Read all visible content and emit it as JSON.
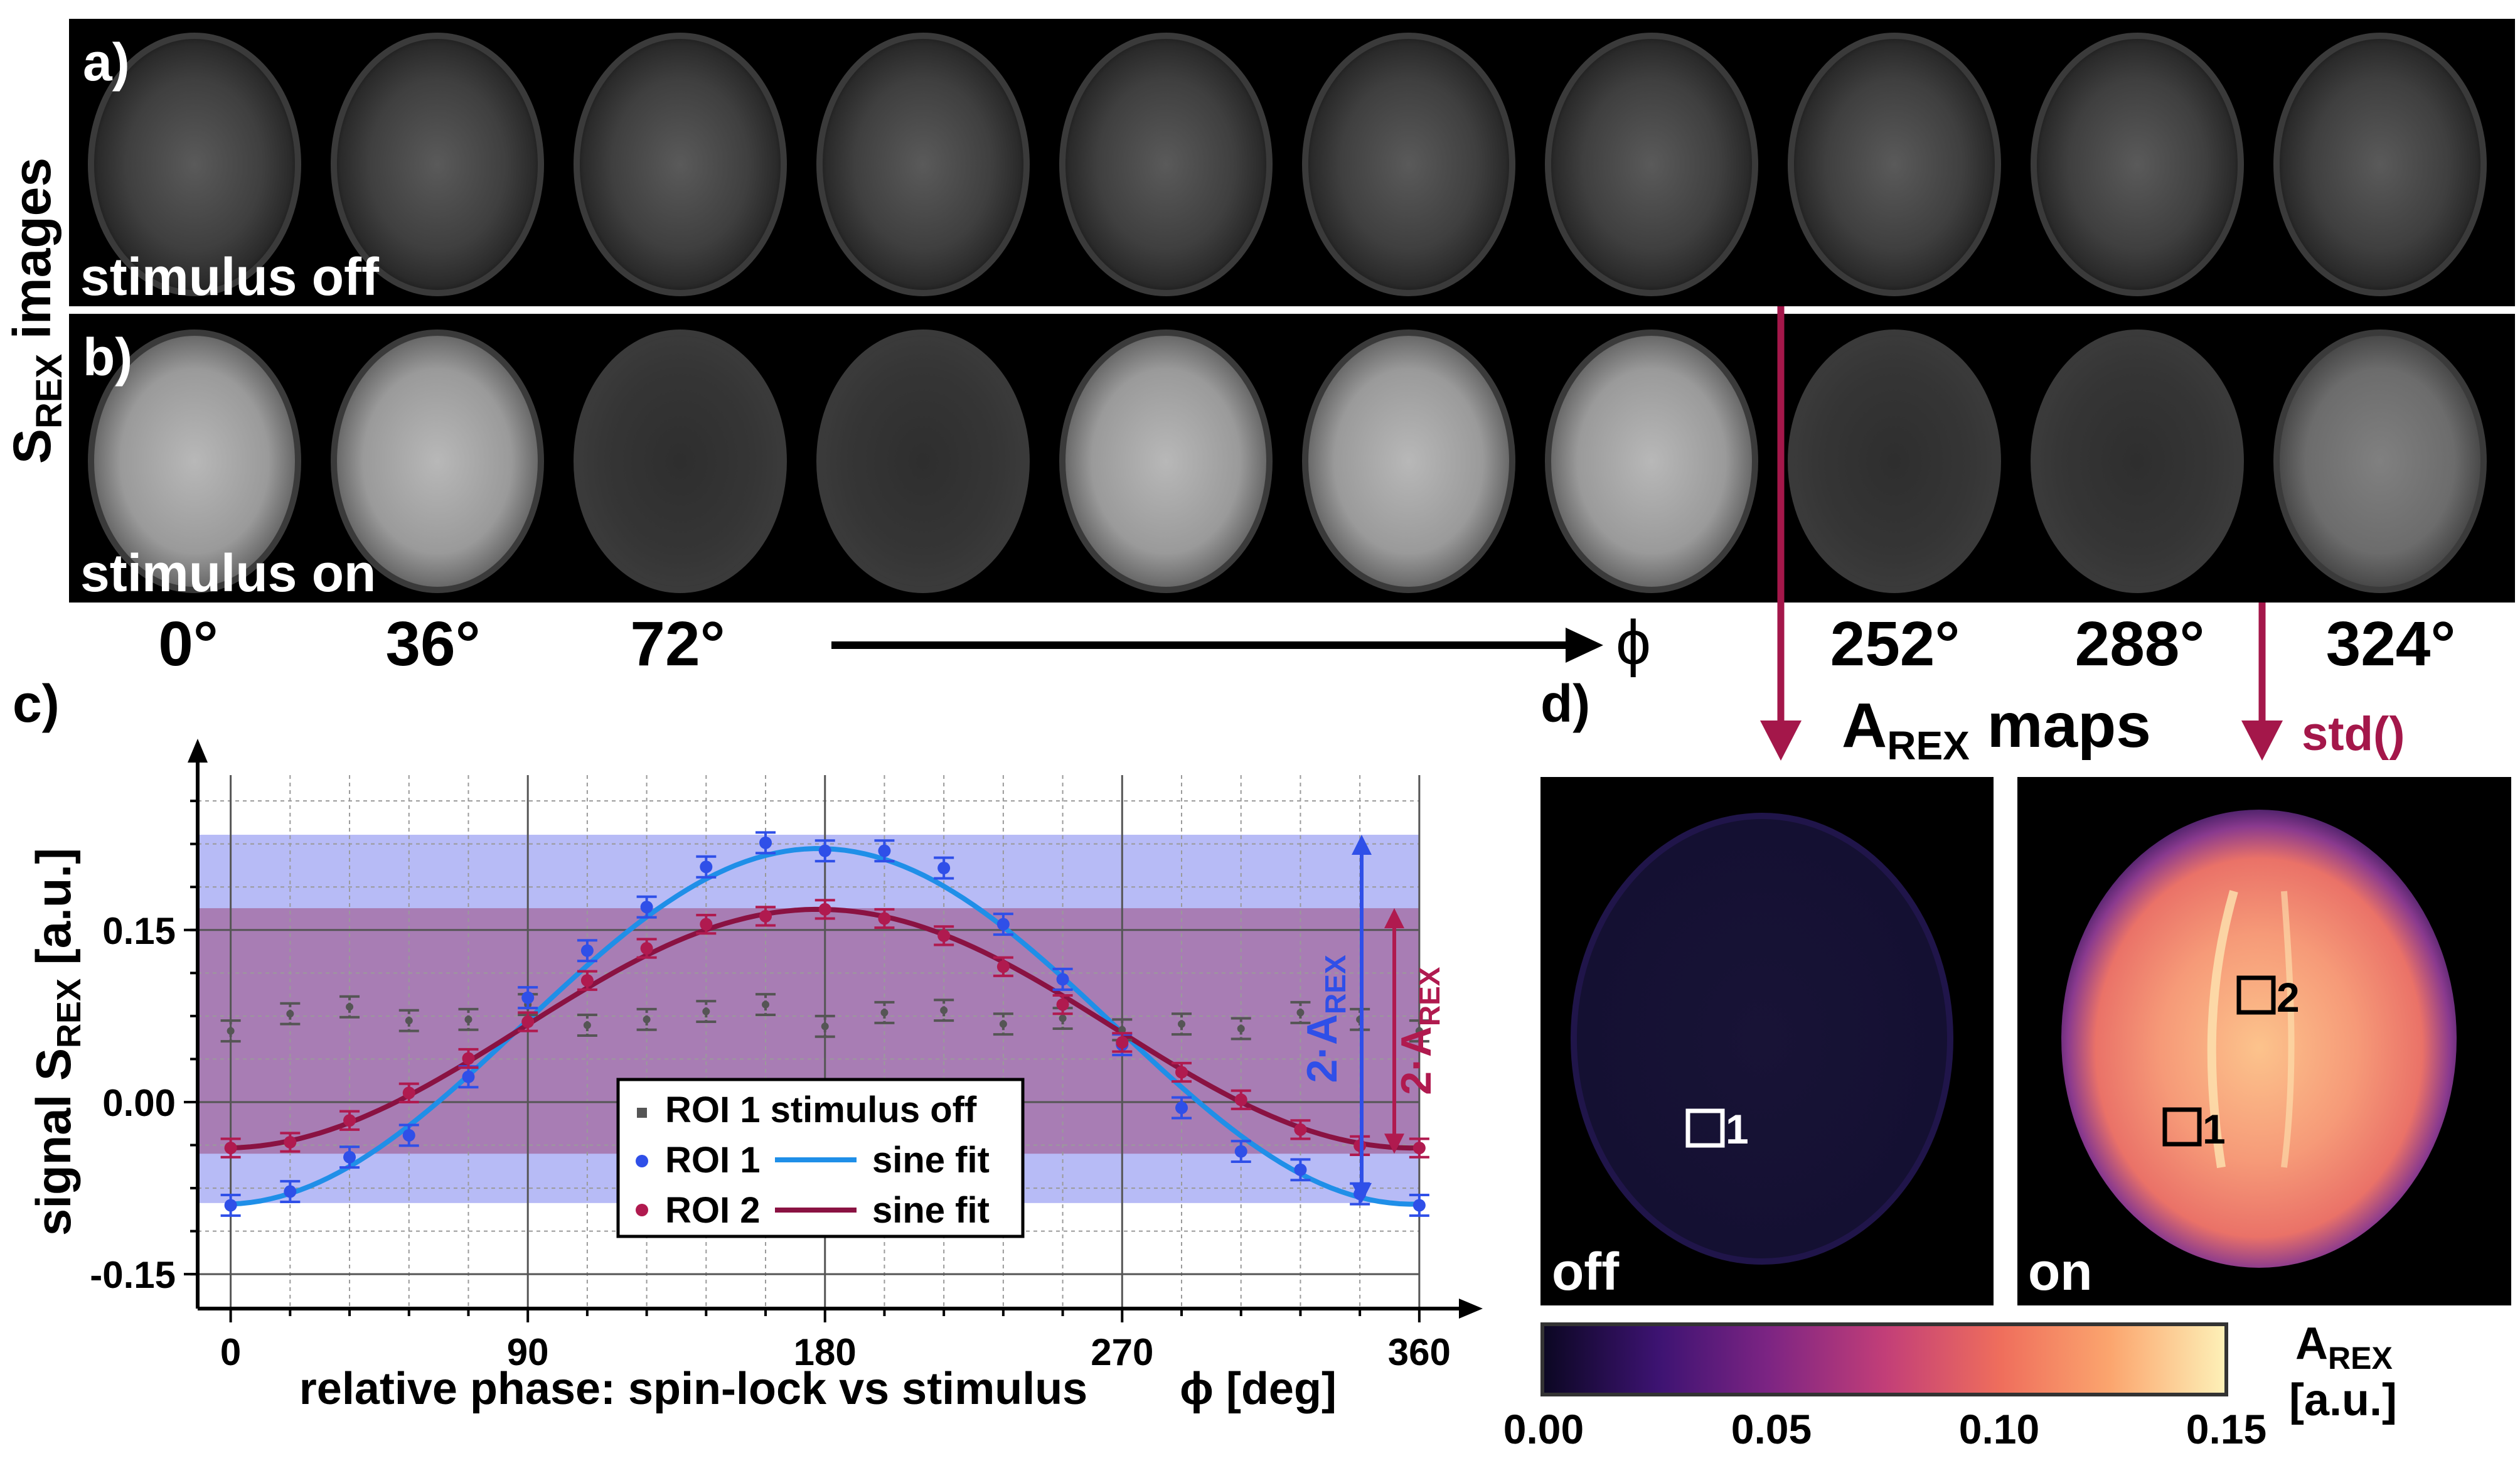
{
  "panel_labels": {
    "a": "a)",
    "b": "b)",
    "c": "c)",
    "d": "d)"
  },
  "row_title": {
    "main": "S",
    "sub": "REX",
    "rest": " images"
  },
  "strip_off_label": "stimulus off",
  "strip_on_label": "stimulus on",
  "phase_labels": [
    "0°",
    "36°",
    "72°",
    "252°",
    "288°",
    "324°"
  ],
  "phi_symbol": "ϕ",
  "maps_title": {
    "main": "A",
    "sub": "REX",
    "rest": " maps"
  },
  "std_label": "std()",
  "map_off_label": "off",
  "map_on_label": "on",
  "roi_box_labels": [
    "1",
    "1",
    "2"
  ],
  "colorbar": {
    "ticks": [
      "0.00",
      "0.05",
      "0.10",
      "0.15"
    ],
    "label_main": "A",
    "label_sub": "REX",
    "label_unit": "[a.u.]",
    "colors": [
      "#0b0722",
      "#3d1372",
      "#7c2483",
      "#c23e78",
      "#ef6e5c",
      "#fba56e",
      "#fdf1b8"
    ]
  },
  "amp_labels": {
    "blue": {
      "prefix": "2·A",
      "sub": "REX"
    },
    "red": {
      "prefix": "2·A",
      "sub": "REX"
    }
  },
  "colors": {
    "roi1": "#2f4fe8",
    "roi1_fit": "#1f8fe8",
    "roi2": "#b01a4f",
    "roi2_fit": "#8a1242",
    "off": "#555555",
    "arrow": "#a4174a"
  },
  "legend": {
    "row1": "ROI 1 stimulus off",
    "row2_a": "ROI 1",
    "row2_b": "sine fit",
    "row3_a": "ROI 2",
    "row3_b": "sine fit"
  },
  "chart_data": {
    "type": "scatter",
    "xlabel": "relative phase: spin-lock vs stimulus",
    "xlabel_unit": "ϕ [deg]",
    "ylabel_main": "signal S",
    "ylabel_sub": "REX",
    "ylabel_unit": " [a.u.]",
    "x_ticks": [
      0,
      90,
      180,
      270,
      360
    ],
    "y_ticks": [
      -0.15,
      0.0,
      0.15
    ],
    "y_tick_labels": [
      "-0.15",
      "0.00",
      "0.15"
    ],
    "xlim": [
      -10,
      372
    ],
    "ylim": [
      -0.18,
      0.285
    ],
    "grid": true,
    "x": [
      0,
      18,
      36,
      54,
      72,
      90,
      108,
      126,
      144,
      162,
      180,
      198,
      216,
      234,
      252,
      270,
      288,
      306,
      324,
      342,
      360
    ],
    "series": [
      {
        "name": "ROI 1 stimulus off",
        "y": [
          0.062,
          0.077,
          0.083,
          0.071,
          0.072,
          0.085,
          0.067,
          0.072,
          0.079,
          0.085,
          0.066,
          0.078,
          0.08,
          0.068,
          0.073,
          0.063,
          0.068,
          0.064,
          0.078,
          0.072,
          0.062
        ]
      },
      {
        "name": "ROI 1",
        "y": [
          -0.09,
          -0.078,
          -0.048,
          -0.029,
          0.022,
          0.091,
          0.132,
          0.17,
          0.205,
          0.226,
          0.219,
          0.219,
          0.204,
          0.155,
          0.107,
          0.05,
          -0.005,
          -0.043,
          -0.059,
          -0.08,
          -0.09
        ]
      },
      {
        "name": "ROI 2",
        "y": [
          -0.04,
          -0.035,
          -0.016,
          0.008,
          0.038,
          0.07,
          0.106,
          0.134,
          0.155,
          0.162,
          0.168,
          0.16,
          0.145,
          0.118,
          0.085,
          0.052,
          0.026,
          0.002,
          -0.024,
          -0.038,
          -0.04
        ]
      }
    ],
    "fits": [
      {
        "name": "ROI 1 sine fit",
        "offset": 0.066,
        "amplitude": 0.155,
        "peak_phase": 178
      },
      {
        "name": "ROI 2 sine fit",
        "offset": 0.064,
        "amplitude": 0.104,
        "peak_phase": 178
      }
    ],
    "bands": [
      {
        "name": "2·A_REX ROI 1",
        "y0": -0.088,
        "y1": 0.233
      },
      {
        "name": "2·A_REX ROI 2",
        "y0": -0.045,
        "y1": 0.169
      }
    ]
  }
}
